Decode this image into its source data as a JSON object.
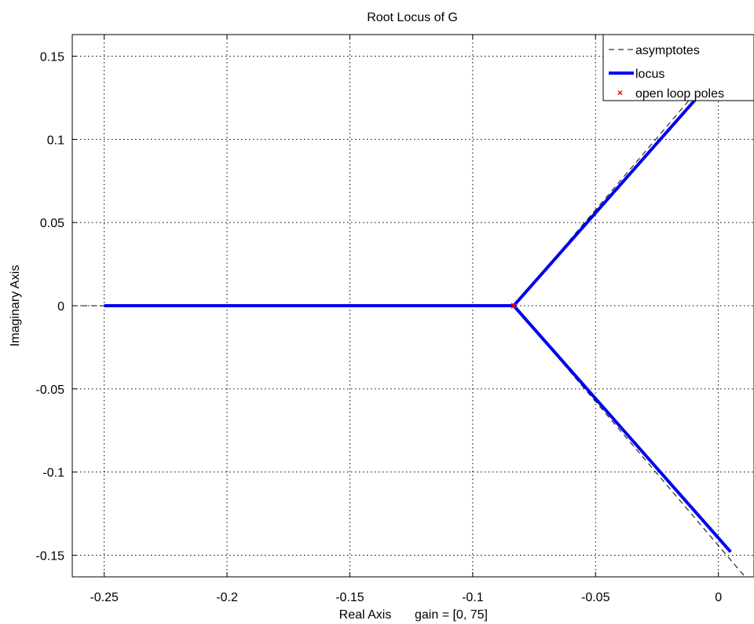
{
  "chart_data": {
    "type": "line",
    "title": "Root Locus of G",
    "xlabel": "Real Axis",
    "xlabel_note": "gain = [0, 75]",
    "ylabel": "Imaginary Axis",
    "xlim": [
      -0.263,
      0.0145
    ],
    "ylim": [
      -0.163,
      0.163
    ],
    "x_ticks": [
      -0.25,
      -0.2,
      -0.15,
      -0.1,
      -0.05,
      0
    ],
    "x_tick_labels": [
      "-0.25",
      "-0.2",
      "-0.15",
      "-0.1",
      "-0.05",
      "0"
    ],
    "y_ticks": [
      0.15,
      0.1,
      0.05,
      0,
      -0.05,
      -0.1,
      -0.15
    ],
    "y_tick_labels": [
      "0.15",
      "0.1",
      "0.05",
      "0",
      "-0.05",
      "-0.1",
      "-0.15"
    ],
    "grid": true,
    "grid_style": "dotted",
    "legend_position": "top-right",
    "legend": [
      {
        "label": "asymptotes",
        "style": "dashed-line",
        "color": "#000000"
      },
      {
        "label": "locus",
        "style": "solid-line",
        "color": "#0000ee"
      },
      {
        "label": "open loop poles",
        "style": "x-marker",
        "color": "#ff0000"
      }
    ],
    "series": [
      {
        "name": "asymptotes",
        "color": "#000000",
        "style": "dashed",
        "segments": [
          [
            [
              -0.263,
              0
            ],
            [
              -0.0833,
              0
            ]
          ],
          [
            [
              -0.0833,
              0
            ],
            [
              0.0145,
              0.1693
            ]
          ],
          [
            [
              -0.0833,
              0
            ],
            [
              0.0145,
              -0.1693
            ]
          ]
        ]
      },
      {
        "name": "locus",
        "color": "#0000ee",
        "style": "solid",
        "segments": [
          [
            [
              -0.25,
              0
            ],
            [
              -0.0833,
              0
            ]
          ],
          [
            [
              -0.0833,
              0
            ],
            [
              0.005,
              0.148
            ]
          ],
          [
            [
              -0.0833,
              0
            ],
            [
              0.005,
              -0.148
            ]
          ]
        ]
      },
      {
        "name": "open loop poles",
        "color": "#ff0000",
        "style": "x-marker",
        "points": [
          [
            -0.0833,
            0
          ],
          [
            -0.0833,
            0
          ],
          [
            -0.0833,
            0
          ]
        ]
      }
    ]
  }
}
